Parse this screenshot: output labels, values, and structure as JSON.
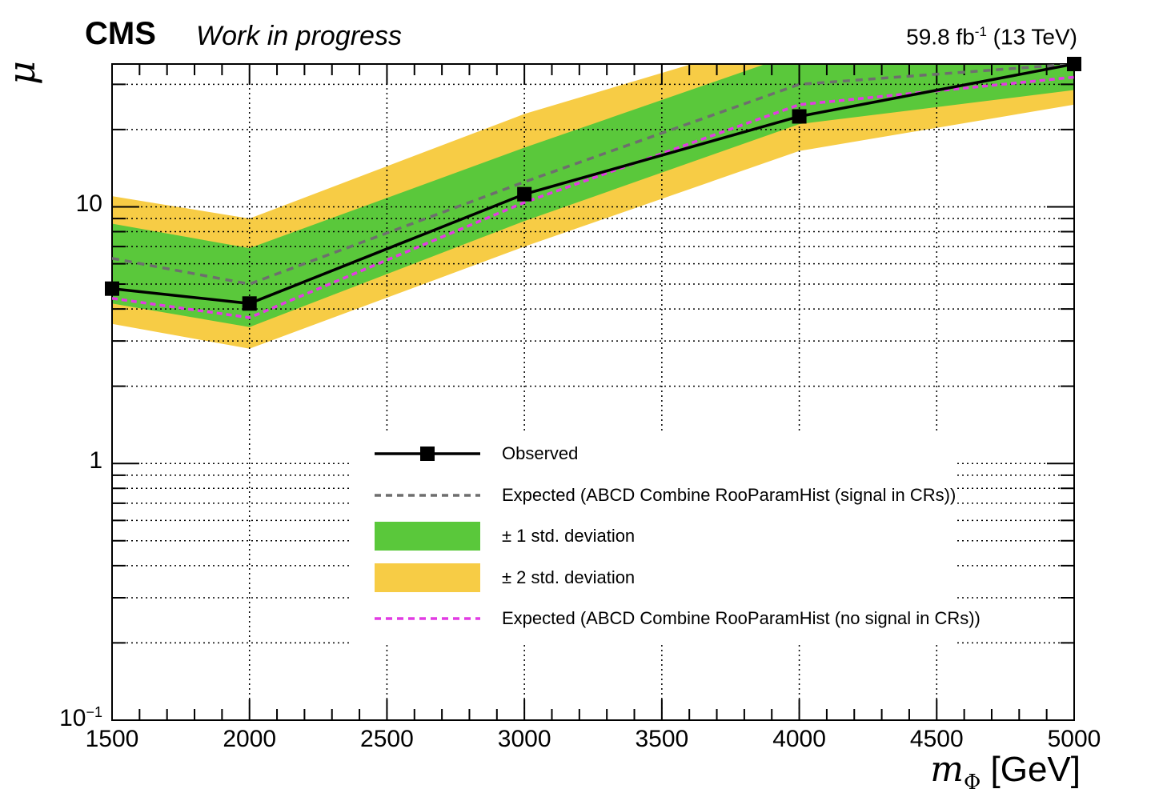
{
  "header": {
    "experiment": "CMS",
    "status": "Work in progress",
    "lumi_value": "59.8 fb",
    "lumi_exp": "-1",
    "energy": " (13 TeV)"
  },
  "colors": {
    "band_1sigma": "#5ac83b",
    "band_2sigma": "#f7cc45",
    "observed": "#000000",
    "expected_signal_in_crs": "#6e6e6e",
    "expected_no_signal_in_crs": "#e23be3"
  },
  "chart_data": {
    "type": "line",
    "x_scale": "linear",
    "y_scale": "log",
    "xlim": [
      1500,
      5000
    ],
    "ylim": [
      0.1,
      36
    ],
    "grid": true,
    "legend_position": "lower-center",
    "xlabel": {
      "symbol": "m",
      "sub": "Φ",
      "unit": "[GeV]"
    },
    "ylabel": "μ",
    "x_ticks": [
      {
        "value": 1500,
        "label": "1500"
      },
      {
        "value": 2000,
        "label": "2000"
      },
      {
        "value": 2500,
        "label": "2500"
      },
      {
        "value": 3000,
        "label": "3000"
      },
      {
        "value": 3500,
        "label": "3500"
      },
      {
        "value": 4000,
        "label": "4000"
      },
      {
        "value": 4500,
        "label": "4500"
      },
      {
        "value": 5000,
        "label": "5000"
      }
    ],
    "y_ticks": [
      {
        "value": 10,
        "label": "10",
        "exp": ""
      },
      {
        "value": 1,
        "label": "1",
        "exp": ""
      },
      {
        "value": 0.1,
        "label": "10",
        "exp": "−1"
      }
    ],
    "x": [
      1500,
      2000,
      3000,
      4000,
      5000
    ],
    "series": [
      {
        "name": "Observed",
        "style": "line-marker",
        "values": [
          4.8,
          4.2,
          11.2,
          22.5,
          36.0
        ]
      },
      {
        "name": "Expected (ABCD Combine RooParamHist (signal in CRs))",
        "style": "dashed",
        "values": [
          6.3,
          5.0,
          12.5,
          30.0,
          36.0
        ]
      },
      {
        "name": "Expected (ABCD Combine RooParamHist (no signal in CRs))",
        "style": "dashed",
        "values": [
          4.4,
          3.7,
          10.4,
          25.0,
          32.0
        ]
      }
    ],
    "bands": [
      {
        "name": "± 2 std. deviation",
        "low": [
          3.5,
          2.8,
          7.0,
          16.5,
          25.0
        ],
        "high": [
          11.0,
          9.0,
          23.0,
          48.0,
          48.0
        ]
      },
      {
        "name": "± 1 std. deviation",
        "low": [
          4.2,
          3.4,
          8.8,
          21.0,
          28.5
        ],
        "high": [
          8.6,
          6.9,
          17.0,
          40.0,
          44.0
        ]
      }
    ],
    "legend": [
      {
        "label": "Observed",
        "kind": "line-marker",
        "color": "#000000"
      },
      {
        "label": "Expected (ABCD Combine RooParamHist (signal in CRs))",
        "kind": "dashed",
        "color": "#6e6e6e"
      },
      {
        "label": "± 1 std. deviation",
        "kind": "box",
        "color": "#5ac83b"
      },
      {
        "label": "± 2 std. deviation",
        "kind": "box",
        "color": "#f7cc45"
      },
      {
        "label": "Expected (ABCD Combine RooParamHist (no signal in CRs))",
        "kind": "dashed",
        "color": "#e23be3"
      }
    ]
  }
}
